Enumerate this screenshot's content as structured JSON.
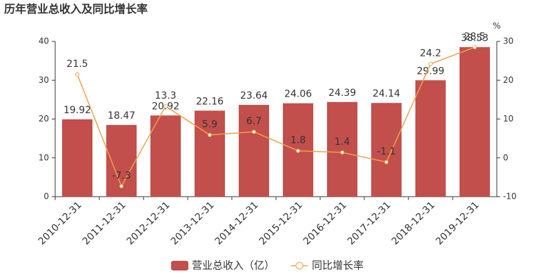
{
  "chart_data": {
    "type": "bar",
    "title": "历年营业总收入及同比增长率",
    "categories": [
      "2010-12-31",
      "2011-12-31",
      "2012-12-31",
      "2013-12-31",
      "2014-12-31",
      "2015-12-31",
      "2016-12-31",
      "2017-12-31",
      "2018-12-31",
      "2019-12-31"
    ],
    "series": [
      {
        "name": "营业总收入（亿）",
        "color": "#c24f4c",
        "values": [
          19.92,
          18.47,
          20.92,
          22.16,
          23.64,
          24.06,
          24.39,
          24.14,
          29.99,
          38.53
        ]
      },
      {
        "name": "同比增长率",
        "color": "#f0a04b",
        "type": "line",
        "axis": "y2",
        "values": [
          21.5,
          -7.3,
          13.3,
          5.9,
          6.7,
          1.8,
          1.4,
          -1.1,
          24.2,
          28.5
        ]
      }
    ],
    "ylim": [
      0,
      40
    ],
    "yticks": [
      0,
      10,
      20,
      30,
      40
    ],
    "y2lim": [
      -10,
      30
    ],
    "y2ticks": [
      -10,
      0,
      10,
      20,
      30
    ],
    "y2_label": "%",
    "grid": false
  }
}
